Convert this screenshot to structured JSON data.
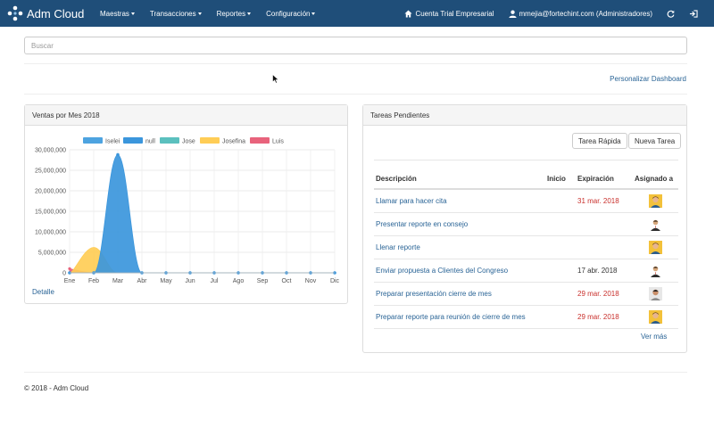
{
  "navbar": {
    "brand": "Adm Cloud",
    "menu": [
      {
        "label": "Maestras"
      },
      {
        "label": "Transacciones"
      },
      {
        "label": "Reportes"
      },
      {
        "label": "Configuración"
      }
    ],
    "account": "Cuenta Trial Empresarial",
    "user": "mmejia@fortechint.com (Administradores)",
    "icons": [
      "home-icon",
      "user-icon",
      "refresh-icon",
      "logout-icon"
    ],
    "color": "#1f4e79"
  },
  "search": {
    "placeholder": "Buscar",
    "value": ""
  },
  "customize_link": "Personalizar Dashboard",
  "sales_panel": {
    "title": "Ventas por Mes 2018",
    "detail_link": "Detalle"
  },
  "tasks_panel": {
    "title": "Tareas Pendientes",
    "quick_task_button": "Tarea Rápida",
    "new_task_button": "Nueva Tarea",
    "columns": [
      "Descripción",
      "Inicio",
      "Expiración",
      "Asignado a"
    ],
    "rows": [
      {
        "description": "Llamar para hacer cita",
        "start": "",
        "expiration": "31 mar. 2018",
        "overdue": true,
        "avatar": "avatar-man-yellow"
      },
      {
        "description": "Presentar reporte en consejo",
        "start": "",
        "expiration": "",
        "overdue": false,
        "avatar": "avatar-man-suit"
      },
      {
        "description": "Llenar reporte",
        "start": "",
        "expiration": "",
        "overdue": false,
        "avatar": "avatar-man-yellow"
      },
      {
        "description": "Enviar propuesta a Clientes del Congreso",
        "start": "",
        "expiration": "17 abr. 2018",
        "overdue": false,
        "avatar": "avatar-man-suit"
      },
      {
        "description": "Preparar presentación cierre de mes",
        "start": "",
        "expiration": "29 mar. 2018",
        "overdue": true,
        "avatar": "avatar-man-photo"
      },
      {
        "description": "Preparar reporte para reunión de cierre de mes",
        "start": "",
        "expiration": "29 mar. 2018",
        "overdue": true,
        "avatar": "avatar-man-yellow"
      }
    ],
    "more_link": "Ver más"
  },
  "footer": "© 2018 - Adm Cloud",
  "chart_data": {
    "type": "area",
    "title": "",
    "categories": [
      "Ene",
      "Feb",
      "Mar",
      "Abr",
      "May",
      "Jun",
      "Jul",
      "Ago",
      "Sep",
      "Oct",
      "Nov",
      "Dic"
    ],
    "ylim": [
      0,
      30000000
    ],
    "yticks": [
      "0",
      "5,000,000",
      "10,000,000",
      "15,000,000",
      "20,000,000",
      "25,000,000",
      "30,000,000"
    ],
    "grid": true,
    "legend_position": "top",
    "series": [
      {
        "name": "Iselei",
        "color": "#4da3e0",
        "values": [
          0,
          0,
          0,
          0,
          0,
          0,
          0,
          0,
          0,
          0,
          0,
          0
        ]
      },
      {
        "name": "null",
        "color": "#3b96dc",
        "values": [
          0,
          0,
          28800000,
          0,
          0,
          0,
          0,
          0,
          0,
          0,
          0,
          0
        ]
      },
      {
        "name": "Jose",
        "color": "#5bc0be",
        "values": [
          0,
          0,
          0,
          0,
          0,
          0,
          0,
          0,
          0,
          0,
          0,
          0
        ]
      },
      {
        "name": "Josefina",
        "color": "#ffcd56",
        "values": [
          0,
          6200000,
          0,
          0,
          0,
          0,
          0,
          0,
          0,
          0,
          0,
          0
        ]
      },
      {
        "name": "Luis",
        "color": "#e8637c",
        "values": [
          1000000,
          0,
          0,
          0,
          0,
          0,
          0,
          0,
          0,
          0,
          0,
          0
        ]
      }
    ]
  }
}
